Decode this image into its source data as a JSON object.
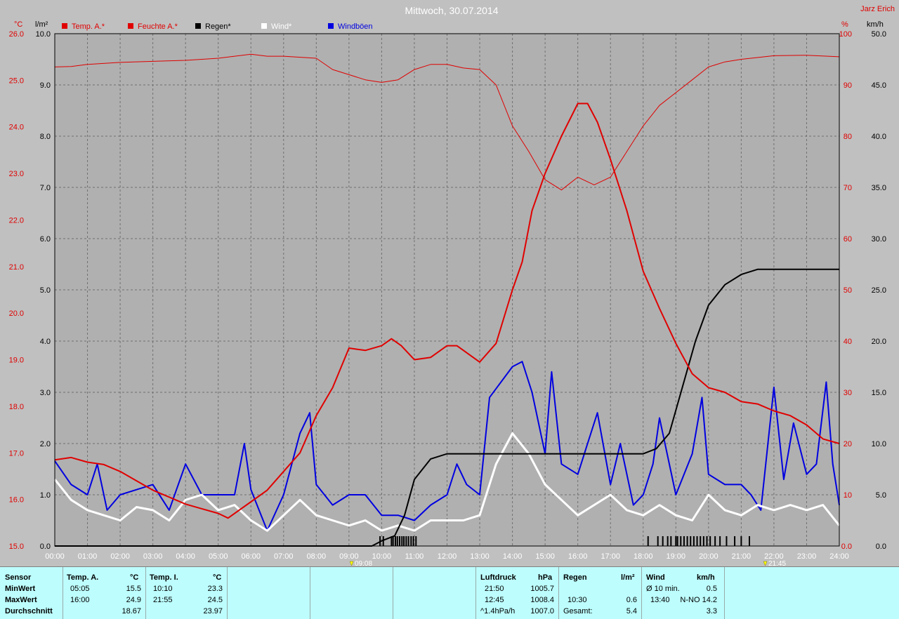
{
  "title": "Mittwoch, 30.07.2014",
  "author": "Jarz Erich",
  "colors": {
    "background": "#b0b0b0",
    "temp": "#e00000",
    "humidity": "#e00000",
    "rain": "#000000",
    "wind": "#ffffff",
    "gusts": "#0000e0",
    "table": "#bdfdfd"
  },
  "legend": [
    {
      "label": "Temp. A.*",
      "color": "#e00000"
    },
    {
      "label": "Feuchte A.*",
      "color": "#e00000"
    },
    {
      "label": "Regen*",
      "color": "#000000"
    },
    {
      "label": "Wind*",
      "color": "#ffffff"
    },
    {
      "label": "Windböen",
      "color": "#0000e0"
    }
  ],
  "markers": {
    "sunrise": "09:08",
    "sunset": "21:45"
  },
  "chart_data": {
    "type": "line",
    "x_unit": "hours",
    "x_ticks": [
      "00:00",
      "01:00",
      "02:00",
      "03:00",
      "04:00",
      "05:00",
      "06:00",
      "07:00",
      "08:00",
      "09:00",
      "10:00",
      "11:00",
      "12:00",
      "13:00",
      "14:00",
      "15:00",
      "16:00",
      "17:00",
      "18:00",
      "19:00",
      "20:00",
      "21:00",
      "22:00",
      "23:00",
      "24:00"
    ],
    "axes": {
      "temp": {
        "unit": "°C",
        "min": 15.0,
        "max": 26.0,
        "ticks": [
          "15.0",
          "16.0",
          "17.0",
          "18.0",
          "19.0",
          "20.0",
          "21.0",
          "22.0",
          "23.0",
          "24.0",
          "25.0",
          "26.0"
        ]
      },
      "rain": {
        "unit": "l/m²",
        "min": 0.0,
        "max": 10.0,
        "ticks": [
          "0.0",
          "1.0",
          "2.0",
          "3.0",
          "4.0",
          "5.0",
          "6.0",
          "7.0",
          "8.0",
          "9.0",
          "10.0"
        ]
      },
      "humidity": {
        "unit": "%",
        "min": 0,
        "max": 100,
        "ticks": [
          "0.0",
          "10",
          "20",
          "30",
          "40",
          "50",
          "60",
          "70",
          "80",
          "90",
          "100"
        ]
      },
      "wind": {
        "unit": "km/h",
        "min": 0,
        "max": 50,
        "ticks": [
          "0.0",
          "5.0",
          "10.0",
          "15.0",
          "20.0",
          "25.0",
          "30.0",
          "35.0",
          "40.0",
          "45.0",
          "50.0"
        ]
      }
    },
    "series": [
      {
        "name": "Temp. A.*",
        "axis": "temp",
        "color": "#e00000",
        "points": [
          [
            0,
            16.85
          ],
          [
            0.5,
            16.9
          ],
          [
            1,
            16.8
          ],
          [
            1.5,
            16.75
          ],
          [
            2,
            16.6
          ],
          [
            2.5,
            16.4
          ],
          [
            3,
            16.2
          ],
          [
            3.5,
            16.05
          ],
          [
            4,
            15.9
          ],
          [
            4.5,
            15.8
          ],
          [
            5,
            15.7
          ],
          [
            5.3,
            15.6
          ],
          [
            6,
            15.95
          ],
          [
            6.5,
            16.2
          ],
          [
            7,
            16.6
          ],
          [
            7.5,
            17.0
          ],
          [
            8,
            17.8
          ],
          [
            8.5,
            18.4
          ],
          [
            9,
            19.25
          ],
          [
            9.5,
            19.2
          ],
          [
            10,
            19.3
          ],
          [
            10.3,
            19.45
          ],
          [
            10.6,
            19.3
          ],
          [
            11,
            19.0
          ],
          [
            11.5,
            19.05
          ],
          [
            12,
            19.3
          ],
          [
            12.3,
            19.3
          ],
          [
            12.6,
            19.15
          ],
          [
            13,
            18.95
          ],
          [
            13.5,
            19.35
          ],
          [
            14,
            20.5
          ],
          [
            14.3,
            21.1
          ],
          [
            14.6,
            22.2
          ],
          [
            15,
            23.0
          ],
          [
            15.5,
            23.8
          ],
          [
            16,
            24.5
          ],
          [
            16.3,
            24.5
          ],
          [
            16.6,
            24.1
          ],
          [
            17,
            23.3
          ],
          [
            17.5,
            22.2
          ],
          [
            18,
            20.9
          ],
          [
            18.5,
            20.1
          ],
          [
            19,
            19.35
          ],
          [
            19.5,
            18.7
          ],
          [
            20,
            18.4
          ],
          [
            20.5,
            18.3
          ],
          [
            21,
            18.1
          ],
          [
            21.5,
            18.05
          ],
          [
            22,
            17.9
          ],
          [
            22.5,
            17.8
          ],
          [
            23,
            17.6
          ],
          [
            23.5,
            17.3
          ],
          [
            24,
            17.2
          ]
        ]
      },
      {
        "name": "Feuchte A.*",
        "axis": "humidity",
        "color": "#e00000",
        "points": [
          [
            0,
            93.5
          ],
          [
            0.5,
            93.6
          ],
          [
            1,
            94
          ],
          [
            2,
            94.4
          ],
          [
            3,
            94.6
          ],
          [
            4,
            94.8
          ],
          [
            5,
            95.2
          ],
          [
            6,
            96
          ],
          [
            6.5,
            95.6
          ],
          [
            7,
            95.6
          ],
          [
            8,
            95.2
          ],
          [
            8.5,
            93
          ],
          [
            9,
            92
          ],
          [
            9.5,
            91
          ],
          [
            10,
            90.5
          ],
          [
            10.5,
            91
          ],
          [
            11,
            93
          ],
          [
            11.5,
            94
          ],
          [
            12,
            94
          ],
          [
            12.5,
            93.3
          ],
          [
            13,
            93
          ],
          [
            13.5,
            90
          ],
          [
            14,
            82
          ],
          [
            14.5,
            77
          ],
          [
            15,
            71.5
          ],
          [
            15.5,
            69.5
          ],
          [
            16,
            72
          ],
          [
            16.5,
            70.5
          ],
          [
            17,
            72
          ],
          [
            17.5,
            77
          ],
          [
            18,
            82
          ],
          [
            18.5,
            86
          ],
          [
            19,
            88.5
          ],
          [
            19.5,
            91
          ],
          [
            20,
            93.5
          ],
          [
            20.5,
            94.5
          ],
          [
            21,
            95
          ],
          [
            22,
            95.7
          ],
          [
            23,
            95.8
          ],
          [
            24,
            95.5
          ]
        ]
      },
      {
        "name": "Regen*",
        "axis": "rain",
        "color": "#000000",
        "points": [
          [
            0,
            0
          ],
          [
            9.7,
            0
          ],
          [
            10,
            0.1
          ],
          [
            10.4,
            0.2
          ],
          [
            10.7,
            0.6
          ],
          [
            11,
            1.3
          ],
          [
            11.5,
            1.7
          ],
          [
            12,
            1.8
          ],
          [
            13,
            1.8
          ],
          [
            14,
            1.8
          ],
          [
            16,
            1.8
          ],
          [
            18,
            1.8
          ],
          [
            18.4,
            1.9
          ],
          [
            18.8,
            2.2
          ],
          [
            19.2,
            3.1
          ],
          [
            19.6,
            4.0
          ],
          [
            20,
            4.7
          ],
          [
            20.5,
            5.1
          ],
          [
            21,
            5.3
          ],
          [
            21.5,
            5.4
          ],
          [
            24,
            5.4
          ]
        ]
      },
      {
        "name": "Wind*",
        "axis": "wind",
        "color": "#ffffff",
        "points": [
          [
            0,
            6.5
          ],
          [
            0.5,
            4.5
          ],
          [
            1,
            3.5
          ],
          [
            1.5,
            3
          ],
          [
            2,
            2.5
          ],
          [
            2.5,
            3.8
          ],
          [
            3,
            3.5
          ],
          [
            3.5,
            2.5
          ],
          [
            4,
            4.5
          ],
          [
            4.5,
            5
          ],
          [
            5,
            3.5
          ],
          [
            5.5,
            4
          ],
          [
            6,
            2.5
          ],
          [
            6.5,
            1.5
          ],
          [
            7,
            3
          ],
          [
            7.5,
            4.5
          ],
          [
            8,
            3
          ],
          [
            8.5,
            2.5
          ],
          [
            9,
            2
          ],
          [
            9.5,
            2.5
          ],
          [
            10,
            1.5
          ],
          [
            10.5,
            2
          ],
          [
            11,
            1.5
          ],
          [
            11.5,
            2.5
          ],
          [
            12,
            2.5
          ],
          [
            12.5,
            2.5
          ],
          [
            13,
            3
          ],
          [
            13.5,
            8
          ],
          [
            14,
            11
          ],
          [
            14.5,
            9
          ],
          [
            15,
            6
          ],
          [
            15.5,
            4.5
          ],
          [
            16,
            3
          ],
          [
            16.5,
            4
          ],
          [
            17,
            5
          ],
          [
            17.5,
            3.5
          ],
          [
            18,
            3
          ],
          [
            18.5,
            4
          ],
          [
            19,
            3
          ],
          [
            19.5,
            2.5
          ],
          [
            20,
            5
          ],
          [
            20.5,
            3.5
          ],
          [
            21,
            3
          ],
          [
            21.5,
            4
          ],
          [
            22,
            3.5
          ],
          [
            22.5,
            4
          ],
          [
            23,
            3.5
          ],
          [
            23.5,
            4
          ],
          [
            24,
            2
          ]
        ]
      },
      {
        "name": "Windböen",
        "axis": "wind",
        "color": "#0000e0",
        "points": [
          [
            0,
            8.3
          ],
          [
            0.5,
            6
          ],
          [
            1,
            5
          ],
          [
            1.3,
            8
          ],
          [
            1.6,
            3.5
          ],
          [
            2,
            5
          ],
          [
            2.5,
            5.5
          ],
          [
            3,
            6
          ],
          [
            3.5,
            3.5
          ],
          [
            4,
            8
          ],
          [
            4.5,
            5
          ],
          [
            5,
            5
          ],
          [
            5.5,
            5
          ],
          [
            5.8,
            10
          ],
          [
            6,
            5.5
          ],
          [
            6.5,
            1.5
          ],
          [
            7,
            5
          ],
          [
            7.5,
            11
          ],
          [
            7.8,
            13
          ],
          [
            8,
            6
          ],
          [
            8.5,
            4
          ],
          [
            9,
            5
          ],
          [
            9.5,
            5
          ],
          [
            10,
            3
          ],
          [
            10.5,
            3
          ],
          [
            11,
            2.5
          ],
          [
            11.5,
            4
          ],
          [
            12,
            5
          ],
          [
            12.3,
            8
          ],
          [
            12.6,
            6
          ],
          [
            13,
            5
          ],
          [
            13.3,
            14.5
          ],
          [
            14,
            17.5
          ],
          [
            14.3,
            18
          ],
          [
            14.6,
            15
          ],
          [
            15,
            9
          ],
          [
            15.2,
            17
          ],
          [
            15.5,
            8
          ],
          [
            16,
            7
          ],
          [
            16.3,
            10
          ],
          [
            16.6,
            13
          ],
          [
            17,
            6
          ],
          [
            17.3,
            10
          ],
          [
            17.7,
            4
          ],
          [
            18,
            5
          ],
          [
            18.3,
            8
          ],
          [
            18.5,
            12.5
          ],
          [
            19,
            5
          ],
          [
            19.5,
            9
          ],
          [
            19.8,
            14.5
          ],
          [
            20,
            7
          ],
          [
            20.5,
            6
          ],
          [
            21,
            6
          ],
          [
            21.3,
            5
          ],
          [
            21.6,
            3.5
          ],
          [
            22,
            15.5
          ],
          [
            22.3,
            6.5
          ],
          [
            22.6,
            12
          ],
          [
            23,
            7
          ],
          [
            23.3,
            8
          ],
          [
            23.6,
            16
          ],
          [
            23.8,
            8
          ],
          [
            24,
            4
          ]
        ]
      }
    ],
    "rain_events_hours": [
      9.95,
      10.05,
      10.3,
      10.35,
      10.42,
      10.48,
      10.55,
      10.62,
      10.68,
      10.75,
      10.82,
      10.9,
      10.97,
      11.05,
      18.15,
      18.45,
      18.6,
      18.75,
      18.85,
      19.0,
      19.05,
      19.15,
      19.25,
      19.35,
      19.45,
      19.55,
      19.65,
      19.75,
      19.85,
      19.95,
      20.05,
      20.2,
      20.35,
      20.55,
      20.8,
      21.0,
      21.25
    ]
  },
  "table": {
    "sensor": {
      "header": "Sensor",
      "rows": [
        "MinWert",
        "MaxWert",
        "Durchschnitt"
      ]
    },
    "temp_a": {
      "header": "Temp. A.",
      "unit": "°C",
      "min_time": "05:05",
      "min_val": "15.5",
      "max_time": "16:00",
      "max_val": "24.9",
      "avg": "18.67"
    },
    "temp_i": {
      "header": "Temp. I.",
      "unit": "°C",
      "min_time": "10:10",
      "min_val": "23.3",
      "max_time": "21:55",
      "max_val": "24.5",
      "avg": "23.97"
    },
    "pressure": {
      "header": "Luftdruck",
      "unit": "hPa",
      "min_time": "21:50",
      "min_val": "1005.7",
      "max_time": "12:45",
      "max_val": "1008.4",
      "trend": "^1.4hPa/h",
      "trend_val": "1007.0"
    },
    "rain": {
      "header": "Regen",
      "unit": "l/m²",
      "max_time": "10:30",
      "max_val": "0.6",
      "total_label": "Gesamt:",
      "total_val": "5.4"
    },
    "wind": {
      "header": "Wind",
      "unit": "km/h",
      "avg10_label": "Ø 10 min.",
      "avg10_val": "0.5",
      "max_time": "13:40",
      "max_val": "N-NO 14.2",
      "avg": "3.3"
    }
  }
}
